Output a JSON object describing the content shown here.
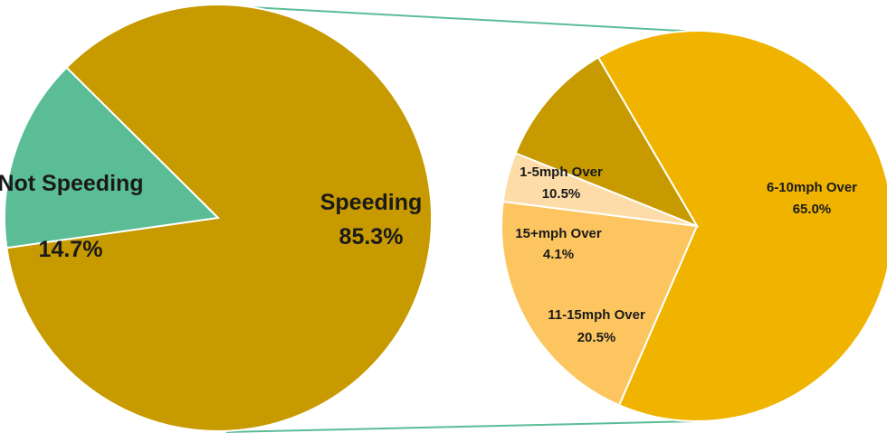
{
  "colors": {
    "speeding": "#c79a00",
    "not_speeding": "#5bbd95",
    "connector": "#5bbd95",
    "sub_1_5": "#c79a00",
    "sub_6_10": "#f0b400",
    "sub_11_15": "#fcc560",
    "sub_15_plus": "#fddca8",
    "slice_border": "#ffffff"
  },
  "chart_data": [
    {
      "type": "pie",
      "title": "",
      "slices": [
        {
          "label": "Not Speeding",
          "value": 14.7,
          "value_label": "14.7%"
        },
        {
          "label": "Speeding",
          "value": 85.3,
          "value_label": "85.3%"
        }
      ]
    },
    {
      "type": "pie",
      "title": "",
      "breakdown_of": "Speeding",
      "slices": [
        {
          "label": "6-10mph Over",
          "value": 65.0,
          "value_label": "65.0%"
        },
        {
          "label": "11-15mph Over",
          "value": 20.5,
          "value_label": "20.5%"
        },
        {
          "label": "15+mph Over",
          "value": 4.1,
          "value_label": "4.1%"
        },
        {
          "label": "1-5mph Over",
          "value": 10.5,
          "value_label": "10.5%"
        }
      ]
    }
  ]
}
